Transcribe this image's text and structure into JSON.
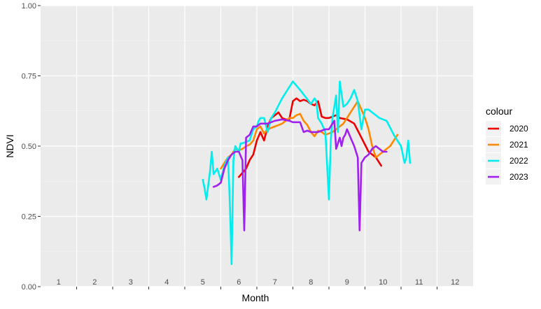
{
  "chart_data": {
    "type": "line",
    "xlabel": "Month",
    "ylabel": "NDVI",
    "xlim": [
      0.5,
      12.5
    ],
    "ylim": [
      0,
      1
    ],
    "x_tick_labels": [
      "1",
      "2",
      "3",
      "4",
      "5",
      "6",
      "7",
      "8",
      "9",
      "10",
      "11",
      "12"
    ],
    "y_ticks": [
      0,
      0.25,
      0.5,
      0.75,
      1
    ],
    "y_tick_labels": [
      "0.00",
      "0.25",
      "0.50",
      "0.75",
      "1.00"
    ],
    "grid": true,
    "legend": {
      "title": "colour",
      "position": "right"
    },
    "colors": {
      "panel_background": "#ebebeb",
      "grid_major": "#ffffff",
      "grid_minor": "#f5f5f5"
    },
    "series": [
      {
        "name": "2020",
        "color": "#ee0000",
        "x": [
          6.0,
          6.1,
          6.2,
          6.3,
          6.4,
          6.5,
          6.6,
          6.7,
          6.8,
          6.9,
          7.0,
          7.1,
          7.2,
          7.3,
          7.4,
          7.5,
          7.6,
          7.7,
          7.8,
          7.9,
          8.0,
          8.1,
          8.2,
          8.3,
          8.4,
          8.5,
          8.6,
          8.7,
          8.8,
          9.0,
          9.2,
          9.4,
          9.6,
          9.8,
          9.95
        ],
        "y": [
          0.39,
          0.405,
          0.42,
          0.45,
          0.47,
          0.52,
          0.55,
          0.52,
          0.57,
          0.6,
          0.61,
          0.62,
          0.6,
          0.595,
          0.595,
          0.66,
          0.67,
          0.66,
          0.665,
          0.66,
          0.65,
          0.645,
          0.66,
          0.605,
          0.6,
          0.6,
          0.605,
          0.61,
          0.6,
          0.595,
          0.58,
          0.53,
          0.48,
          0.46,
          0.43
        ]
      },
      {
        "name": "2021",
        "color": "#ff8800",
        "x": [
          5.5,
          5.6,
          5.7,
          5.8,
          5.9,
          6.0,
          6.1,
          6.2,
          6.3,
          6.4,
          6.5,
          6.6,
          6.7,
          6.8,
          6.9,
          7.0,
          7.1,
          7.2,
          7.3,
          7.4,
          7.5,
          7.6,
          7.7,
          7.8,
          7.9,
          8.0,
          8.1,
          8.2,
          8.3,
          8.4,
          8.5,
          8.6,
          8.7,
          8.8,
          8.9,
          9.0,
          9.1,
          9.2,
          9.3,
          9.4,
          9.5,
          9.6,
          9.7,
          9.8,
          9.9,
          10.0,
          10.2,
          10.4
        ],
        "y": [
          0.42,
          0.44,
          0.46,
          0.47,
          0.49,
          0.485,
          0.49,
          0.5,
          0.505,
          0.52,
          0.56,
          0.57,
          0.545,
          0.56,
          0.565,
          0.57,
          0.575,
          0.58,
          0.59,
          0.6,
          0.6,
          0.61,
          0.615,
          0.59,
          0.575,
          0.55,
          0.535,
          0.555,
          0.55,
          0.54,
          0.545,
          0.55,
          0.56,
          0.57,
          0.58,
          0.6,
          0.62,
          0.64,
          0.66,
          0.63,
          0.6,
          0.56,
          0.5,
          0.46,
          0.47,
          0.48,
          0.5,
          0.54
        ]
      },
      {
        "name": "2022",
        "color": "#00eeee",
        "x": [
          5.0,
          5.05,
          5.1,
          5.2,
          5.25,
          5.3,
          5.4,
          5.5,
          5.6,
          5.7,
          5.75,
          5.8,
          5.85,
          5.9,
          6.0,
          6.05,
          6.1,
          6.2,
          6.3,
          6.4,
          6.5,
          6.55,
          6.6,
          6.7,
          6.8,
          6.9,
          7.0,
          7.2,
          7.5,
          7.7,
          8.0,
          8.1,
          8.15,
          8.2,
          8.3,
          8.4,
          8.5,
          8.55,
          8.6,
          8.7,
          8.75,
          8.8,
          8.9,
          9.0,
          9.1,
          9.2,
          9.3,
          9.4,
          9.5,
          9.6,
          9.7,
          9.8,
          9.9,
          10.1,
          10.3,
          10.5,
          10.6,
          10.65,
          10.7,
          10.75
        ],
        "y": [
          0.38,
          0.35,
          0.31,
          0.41,
          0.48,
          0.4,
          0.42,
          0.38,
          0.43,
          0.46,
          0.3,
          0.08,
          0.45,
          0.5,
          0.48,
          0.51,
          0.51,
          0.515,
          0.52,
          0.56,
          0.57,
          0.59,
          0.6,
          0.6,
          0.55,
          0.6,
          0.62,
          0.67,
          0.73,
          0.7,
          0.65,
          0.67,
          0.66,
          0.6,
          0.58,
          0.55,
          0.31,
          0.52,
          0.6,
          0.68,
          0.55,
          0.73,
          0.64,
          0.65,
          0.67,
          0.7,
          0.66,
          0.56,
          0.63,
          0.63,
          0.62,
          0.61,
          0.6,
          0.59,
          0.54,
          0.5,
          0.44,
          0.46,
          0.52,
          0.44
        ]
      },
      {
        "name": "2023",
        "color": "#a020f0",
        "x": [
          5.3,
          5.4,
          5.5,
          5.6,
          5.7,
          5.8,
          5.9,
          6.0,
          6.1,
          6.15,
          6.2,
          6.3,
          6.4,
          6.5,
          6.6,
          6.7,
          6.8,
          6.9,
          7.0,
          7.2,
          7.4,
          7.5,
          7.7,
          7.8,
          7.9,
          8.0,
          8.2,
          8.4,
          8.5,
          8.6,
          8.65,
          8.7,
          8.8,
          8.85,
          8.9,
          8.95,
          9.0,
          9.1,
          9.2,
          9.3,
          9.35,
          9.4,
          9.5,
          9.6,
          9.7,
          9.8,
          9.9,
          10.0,
          10.1
        ],
        "y": [
          0.355,
          0.36,
          0.37,
          0.42,
          0.45,
          0.47,
          0.48,
          0.48,
          0.45,
          0.2,
          0.53,
          0.54,
          0.57,
          0.57,
          0.58,
          0.58,
          0.58,
          0.585,
          0.59,
          0.595,
          0.59,
          0.585,
          0.585,
          0.55,
          0.555,
          0.55,
          0.55,
          0.56,
          0.56,
          0.58,
          0.59,
          0.49,
          0.53,
          0.5,
          0.53,
          0.54,
          0.56,
          0.53,
          0.5,
          0.46,
          0.2,
          0.44,
          0.46,
          0.47,
          0.49,
          0.5,
          0.49,
          0.48,
          0.48
        ]
      }
    ]
  }
}
